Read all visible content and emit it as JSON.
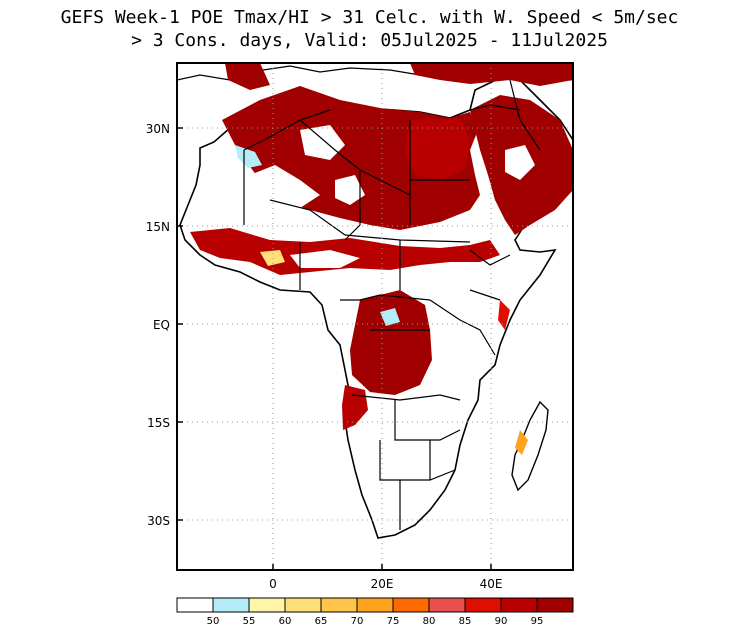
{
  "title": {
    "line1": "GEFS Week-1 POE Tmax/HI > 31 Celc. with W. Speed < 5m/sec",
    "line2": "> 3 Cons. days, Valid: 05Jul2025 - 11Jul2025"
  },
  "axes": {
    "y_ticks": [
      {
        "label": "30N",
        "value": 30
      },
      {
        "label": "15N",
        "value": 15
      },
      {
        "label": "EQ",
        "value": 0
      },
      {
        "label": "15S",
        "value": -15
      },
      {
        "label": "30S",
        "value": -30
      }
    ],
    "x_ticks": [
      {
        "label": "0",
        "value": 0
      },
      {
        "label": "20E",
        "value": 20
      },
      {
        "label": "40E",
        "value": 40
      }
    ],
    "lon_range": [
      -18,
      55
    ],
    "lat_range": [
      -38,
      40
    ],
    "grid": "dotted"
  },
  "colorbar": {
    "labels": [
      "50",
      "55",
      "60",
      "65",
      "70",
      "75",
      "80",
      "85",
      "90",
      "95"
    ],
    "colors": [
      "#ffffff",
      "#b4ecf8",
      "#fff5a8",
      "#ffe078",
      "#ffc44a",
      "#ffa21e",
      "#ff6a00",
      "#e85050",
      "#e00d00",
      "#b80000",
      "#a00000"
    ]
  },
  "legend_placement": "bottom"
}
